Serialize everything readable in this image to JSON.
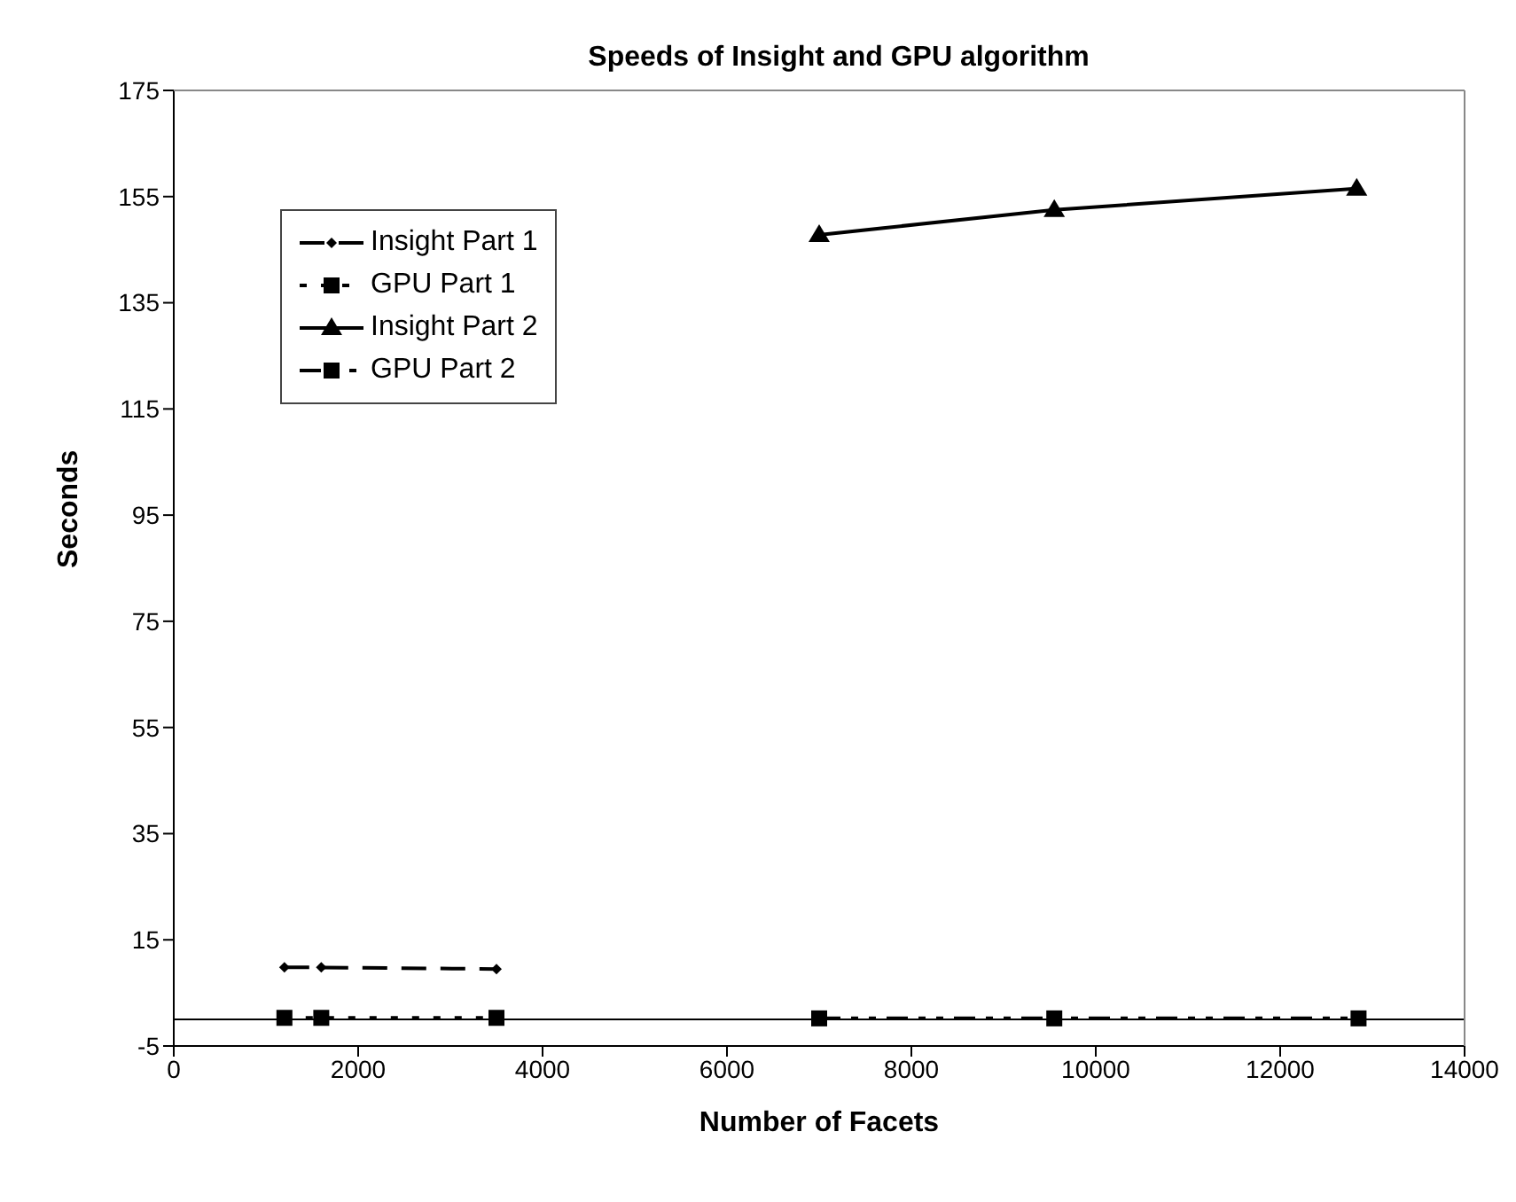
{
  "chart_data": {
    "type": "line",
    "title": "Speeds of Insight and GPU algorithm",
    "xlabel": "Number of Facets",
    "ylabel": "Seconds",
    "xlim": [
      0,
      14000
    ],
    "xticks": [
      0,
      2000,
      4000,
      6000,
      8000,
      10000,
      12000,
      14000
    ],
    "ylim": [
      -5,
      175
    ],
    "yticks": [
      -5,
      15,
      35,
      55,
      75,
      95,
      115,
      135,
      155,
      175
    ],
    "grid": false,
    "legend": "top left",
    "ref_lines": [
      {
        "axis": "y",
        "value": 0,
        "color": "#000000"
      }
    ],
    "series": [
      {
        "name": "Insight Part 1",
        "color": "#000000",
        "x": [
          1200,
          1600,
          3500
        ],
        "values": [
          9.8,
          9.8,
          9.5
        ],
        "marker": "diamond",
        "line_style": "dashed"
      },
      {
        "name": "GPU Part 1",
        "color": "#000000",
        "x": [
          1200,
          1600,
          3500
        ],
        "values": [
          0.3,
          0.3,
          0.3
        ],
        "marker": "square",
        "line_style": "dotted"
      },
      {
        "name": "Insight Part 2",
        "color": "#000000",
        "x": [
          7000,
          9550,
          12830
        ],
        "values": [
          147.8,
          152.5,
          156.5
        ],
        "marker": "triangle",
        "line_style": "solid"
      },
      {
        "name": "GPU Part 2",
        "color": "#000000",
        "x": [
          7000,
          9550,
          12850
        ],
        "values": [
          0.2,
          0.2,
          0.2
        ],
        "marker": "square",
        "line_style": "dashdot"
      }
    ]
  }
}
